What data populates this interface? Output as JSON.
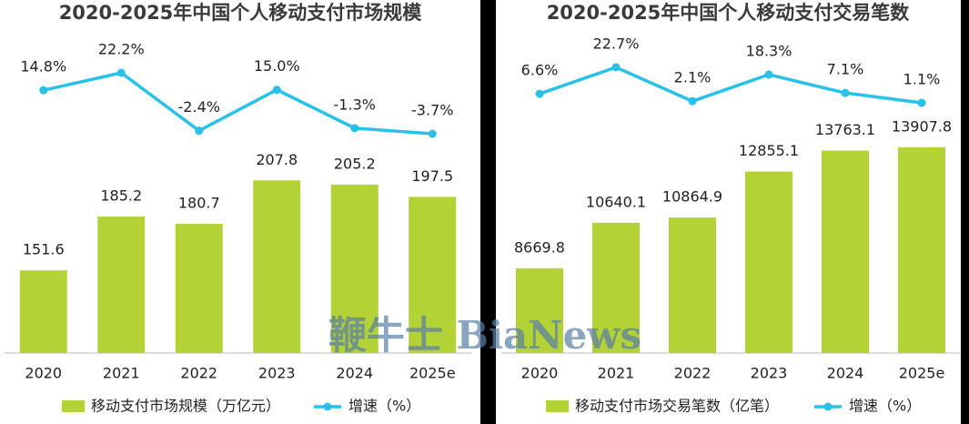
{
  "chart_data": [
    {
      "type": "bar",
      "title": "2020-2025年中国个人移动支付市场规模",
      "categories": [
        "2020",
        "2021",
        "2022",
        "2023",
        "2024",
        "2025e"
      ],
      "series": [
        {
          "name": "移动支付市场规模（万亿元）",
          "type": "bar",
          "color": "#b2d235",
          "values": [
            151.6,
            185.2,
            180.7,
            207.8,
            205.2,
            197.5
          ]
        },
        {
          "name": "增速（%）",
          "type": "line",
          "axis": "y2",
          "color": "#29c1e8",
          "values": [
            14.8,
            22.2,
            -2.4,
            15.0,
            -1.3,
            -3.7
          ],
          "value_labels": [
            "14.8%",
            "22.2%",
            "-2.4%",
            "15.0%",
            "-1.3%",
            "-3.7%"
          ]
        }
      ],
      "ylim": [
        100,
        300
      ],
      "y2lim": [
        -96.8,
        39.2
      ],
      "legend": "bottom"
    },
    {
      "type": "bar",
      "title": "2020-2025年中国个人移动支付交易笔数",
      "categories": [
        "2020",
        "2021",
        "2022",
        "2023",
        "2024",
        "2025e"
      ],
      "series": [
        {
          "name": "移动支付市场交易笔数（亿笔）",
          "type": "bar",
          "color": "#b2d235",
          "values": [
            8669.8,
            10640.1,
            10864.9,
            12855.1,
            13763.1,
            13907.8
          ]
        },
        {
          "name": "增速（%）",
          "type": "line",
          "axis": "y2",
          "color": "#29c1e8",
          "values": [
            6.6,
            22.7,
            2.1,
            18.3,
            7.1,
            1.1
          ],
          "value_labels": [
            "6.6%",
            "22.7%",
            "2.1%",
            "18.3%",
            "7.1%",
            "1.1%"
          ]
        }
      ],
      "ylim": [
        5000,
        18864
      ],
      "y2lim": [
        -151,
        43.7
      ],
      "legend": "bottom"
    }
  ],
  "watermark": "鞭牛士 BiaNews"
}
